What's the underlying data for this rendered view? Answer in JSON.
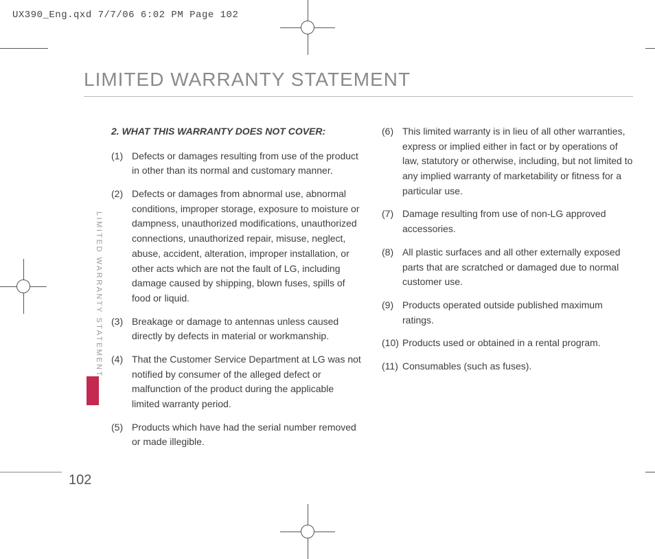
{
  "headerLine": "UX390_Eng.qxd  7/7/06  6:02 PM  Page 102",
  "title": "LIMITED WARRANTY STATEMENT",
  "sideLabel": "LIMITED WARRANTY STATEMENT",
  "pageNumber": "102",
  "sectionHeading": "2. WHAT THIS WARRANTY DOES NOT COVER:",
  "leftItems": [
    {
      "num": "(1)",
      "text": "Defects or damages resulting from use of the product in other than its normal and customary manner."
    },
    {
      "num": "(2)",
      "text": "Defects or damages from abnormal use, abnormal conditions, improper storage, exposure to moisture or dampness, unauthorized modifications, unauthorized connections, unauthorized repair, misuse, neglect, abuse, accident, alteration, improper installation, or other acts which are not the fault of LG, including damage caused by shipping, blown fuses, spills of food or liquid."
    },
    {
      "num": "(3)",
      "text": "Breakage or damage to antennas unless caused directly by defects in material or workmanship."
    },
    {
      "num": "(4)",
      "text": "That the Customer Service Department at LG was not notified by consumer of the alleged defect or malfunction of the product during the applicable limited warranty period."
    },
    {
      "num": "(5)",
      "text": "Products which have had the serial number removed or made illegible."
    }
  ],
  "rightItems": [
    {
      "num": "(6)",
      "text": "This limited warranty is in lieu of all other warranties, express or implied either in fact or by operations of law, statutory or otherwise, including, but not limited to any implied warranty of marketability or fitness for a particular use."
    },
    {
      "num": "(7)",
      "text": "Damage resulting from use of non-LG approved accessories."
    },
    {
      "num": "(8)",
      "text": "All plastic surfaces and all other externally exposed parts that are scratched or damaged due to normal customer use."
    },
    {
      "num": "(9)",
      "text": "Products operated outside published maximum ratings."
    },
    {
      "num": "(10)",
      "text": "Products used or obtained in a rental program."
    },
    {
      "num": "(11)",
      "text": "Consumables (such as fuses)."
    }
  ]
}
